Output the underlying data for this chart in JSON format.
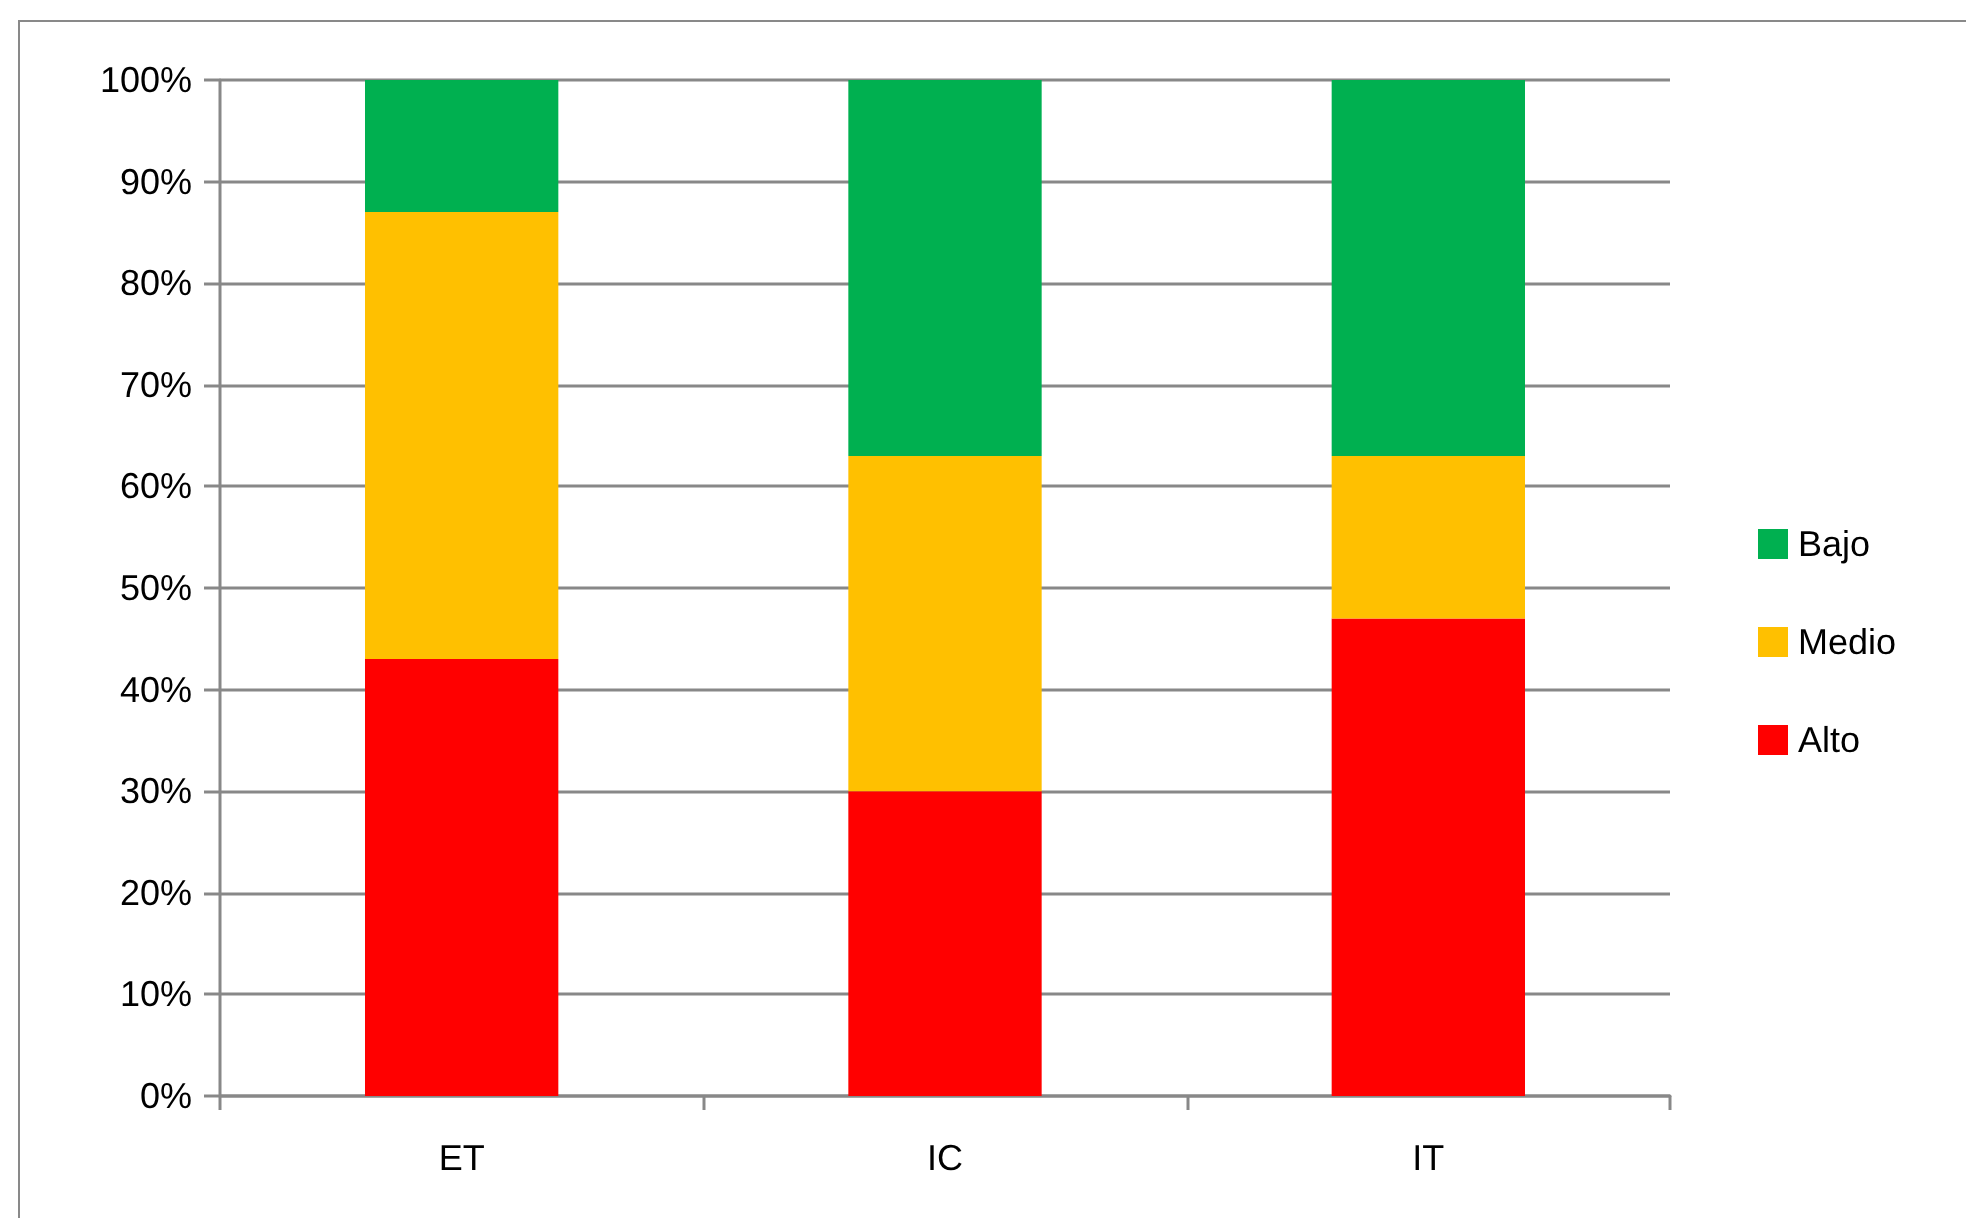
{
  "chart_data": {
    "type": "bar",
    "stacked": true,
    "categories": [
      "ET",
      "IC",
      "IT"
    ],
    "series": [
      {
        "name": "Alto",
        "color": "#ff0000",
        "values": [
          43,
          30,
          47
        ]
      },
      {
        "name": "Medio",
        "color": "#ffc000",
        "values": [
          44,
          33,
          16
        ]
      },
      {
        "name": "Bajo",
        "color": "#00b050",
        "values": [
          13,
          37,
          37
        ]
      }
    ],
    "ylim": [
      0,
      100
    ],
    "yticks": [
      {
        "value": 0,
        "label": "0%"
      },
      {
        "value": 10,
        "label": "10%"
      },
      {
        "value": 20,
        "label": "20%"
      },
      {
        "value": 30,
        "label": "30%"
      },
      {
        "value": 40,
        "label": "40%"
      },
      {
        "value": 50,
        "label": "50%"
      },
      {
        "value": 60,
        "label": "60%"
      },
      {
        "value": 70,
        "label": "70%"
      },
      {
        "value": 80,
        "label": "80%"
      },
      {
        "value": 90,
        "label": "90%"
      },
      {
        "value": 100,
        "label": "100%"
      }
    ],
    "grid": "y",
    "legend": "right"
  }
}
